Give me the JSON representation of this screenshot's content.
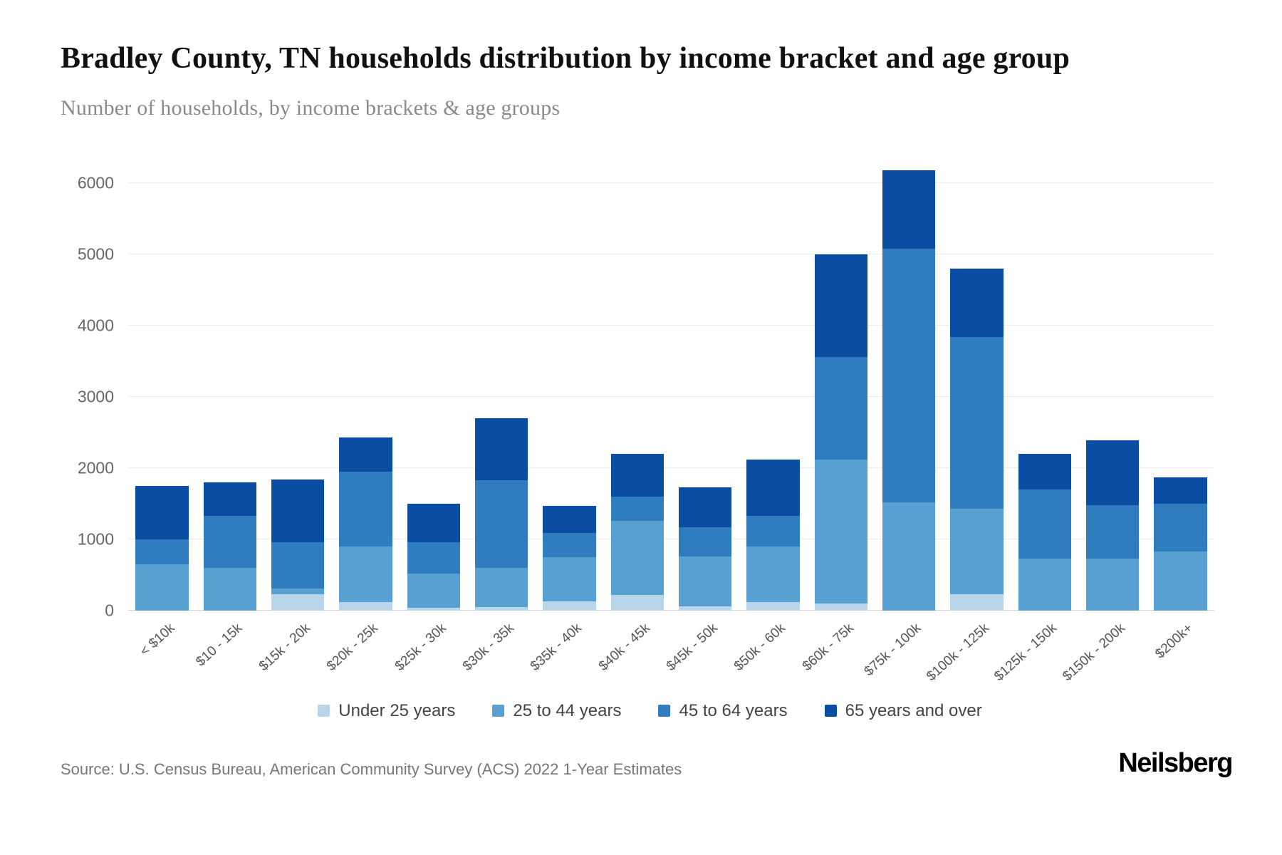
{
  "header": {
    "title": "Bradley County, TN households distribution by income bracket and age group",
    "subtitle": "Number of households, by income brackets & age groups"
  },
  "chart_data": {
    "type": "bar",
    "stacked": true,
    "title": "Bradley County, TN households distribution by income bracket and age group",
    "subtitle": "Number of households, by income brackets & age groups",
    "categories": [
      "< $10k",
      "$10 - 15k",
      "$15k - 20k",
      "$20k - 25k",
      "$25k - 30k",
      "$30k - 35k",
      "$35k - 40k",
      "$40k - 45k",
      "$45k - 50k",
      "$50k - 60k",
      "$60k - 75k",
      "$75k - 100k",
      "$100k - 125k",
      "$125k - 150k",
      "$150k - 200k",
      "$200k+"
    ],
    "series": [
      {
        "name": "Under 25 years",
        "color": "#b8d5ea",
        "values": [
          0,
          0,
          230,
          120,
          40,
          50,
          130,
          220,
          60,
          120,
          100,
          0,
          230,
          0,
          0,
          0
        ]
      },
      {
        "name": "25 to 44 years",
        "color": "#58a0d2",
        "values": [
          650,
          600,
          80,
          780,
          480,
          550,
          620,
          1040,
          700,
          780,
          2020,
          1520,
          1200,
          730,
          730,
          830
        ]
      },
      {
        "name": "45 to 64 years",
        "color": "#2f7cbe",
        "values": [
          350,
          730,
          650,
          1050,
          440,
          1230,
          340,
          340,
          410,
          430,
          1440,
          3560,
          2410,
          970,
          750,
          670
        ]
      },
      {
        "name": "65 years and over",
        "color": "#0b4da2",
        "values": [
          750,
          470,
          880,
          480,
          540,
          870,
          380,
          600,
          560,
          790,
          1440,
          1100,
          960,
          500,
          910,
          370
        ]
      }
    ],
    "xlabel": "",
    "ylabel": "",
    "ylim": [
      0,
      6400
    ],
    "yticks": [
      0,
      1000,
      2000,
      3000,
      4000,
      5000,
      6000
    ],
    "grid": true,
    "legend_position": "bottom"
  },
  "footer": {
    "source": "Source: U.S. Census Bureau, American Community Survey (ACS) 2022 1-Year Estimates",
    "brand": "Neilsberg"
  }
}
